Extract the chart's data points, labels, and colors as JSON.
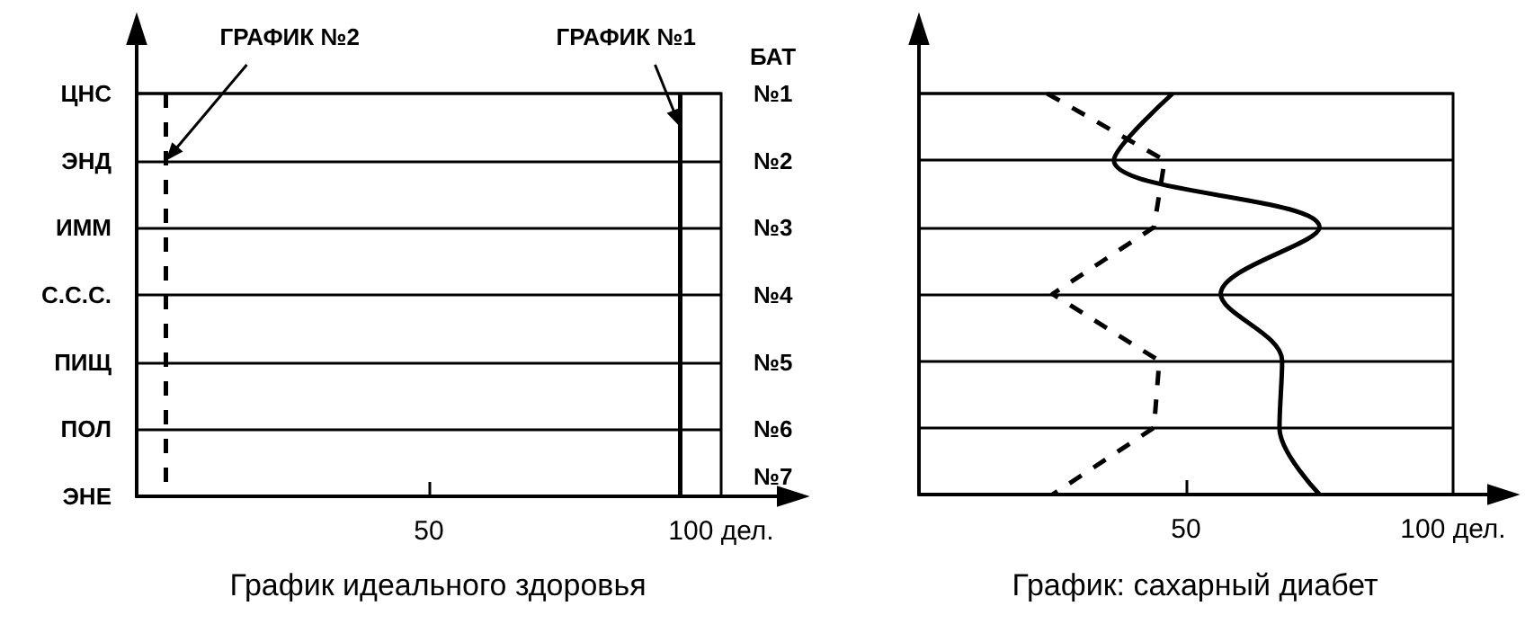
{
  "chart_data": [
    {
      "type": "line",
      "title": "График идеального здоровья",
      "orientation": "horizontal",
      "categories": [
        "ЦНС",
        "ЭНД",
        "ИММ",
        "С.С.С.",
        "ПИЩ",
        "ПОЛ",
        "ЭНЕ"
      ],
      "y2_categories": [
        "№1",
        "№2",
        "№3",
        "№4",
        "№5",
        "№6",
        "№7"
      ],
      "y2label": "БАТ",
      "series": [
        {
          "name": "ГРАФИК №1",
          "color": "#000000",
          "line_style": "solid",
          "values": [
            93,
            93,
            93,
            93,
            93,
            93,
            93
          ]
        },
        {
          "name": "ГРАФИК №2",
          "color": "#000000",
          "line_style": "dashed",
          "values": [
            5,
            5,
            5,
            5,
            5,
            5,
            5
          ]
        }
      ],
      "xlim": [
        0,
        100
      ],
      "xticks": [
        50,
        {
          "value": 100,
          "label": "100 дел."
        }
      ],
      "grid": "y",
      "legend": false,
      "marker": "none"
    },
    {
      "type": "line",
      "title": "График: сахарный диабет",
      "orientation": "horizontal",
      "tick_labels": "x",
      "categories": [
        null,
        null,
        null,
        null,
        null,
        null,
        null
      ],
      "series": [
        {
          "color": "#000000",
          "line_style": "solid",
          "values": [
            47.5,
            36.5,
            75,
            56.5,
            68,
            67.5,
            75
          ]
        },
        {
          "color": "#000000",
          "line_style": "dashed",
          "values": [
            24,
            46,
            44,
            25,
            45,
            44,
            25
          ]
        }
      ],
      "xlim": [
        0,
        100
      ],
      "xticks": [
        50,
        {
          "value": 100,
          "label": "100 дел."
        }
      ],
      "grid": "y",
      "legend": false,
      "marker": "none"
    }
  ]
}
